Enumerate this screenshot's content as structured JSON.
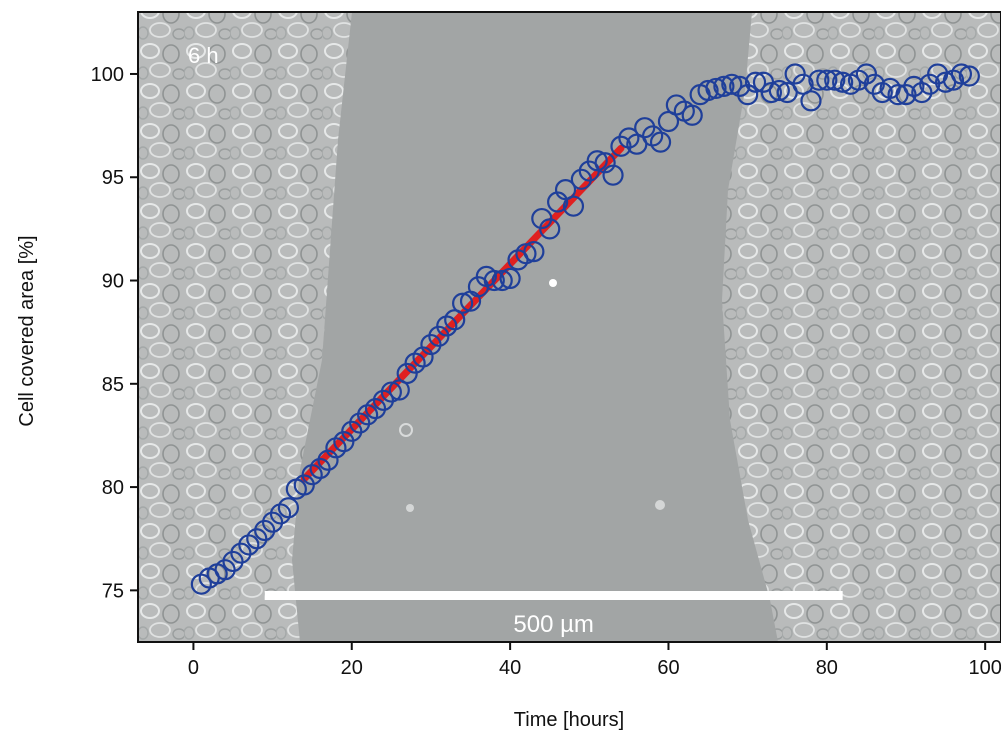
{
  "chart_data": {
    "type": "scatter",
    "title": "",
    "xlabel": "Time [hours]",
    "ylabel": "Cell covered area [%]",
    "xlim": [
      -7,
      102
    ],
    "ylim": [
      72.5,
      103
    ],
    "xticks": [
      0,
      20,
      40,
      60,
      80,
      100
    ],
    "yticks": [
      75,
      80,
      85,
      90,
      95,
      100
    ],
    "xtick_labels": [
      "0",
      "20",
      "40",
      "60",
      "80",
      "100"
    ],
    "ytick_labels": [
      "75",
      "80",
      "85",
      "90",
      "95",
      "100"
    ],
    "grid": false,
    "legend": "none",
    "background": "phase-contrast microscopy image of a cell monolayer with a scratch-wound gap",
    "image_label": "6 h",
    "scale_bar_label": "500 µm",
    "scale_bar_range": [
      9,
      82
    ],
    "series": [
      {
        "marker": "open-circle",
        "color": "#1f3f9a",
        "x": [
          1,
          2,
          3,
          4,
          5,
          6,
          7,
          8,
          9,
          10,
          11,
          12,
          13,
          14,
          15,
          16,
          17,
          18,
          19,
          20,
          21,
          22,
          23,
          24,
          25,
          26,
          27,
          28,
          29,
          30,
          31,
          32,
          33,
          34,
          35,
          36,
          37,
          38,
          39,
          40,
          41,
          42,
          43,
          44,
          45,
          46,
          47,
          48,
          49,
          50,
          51,
          52,
          53,
          54,
          55,
          56,
          57,
          58,
          59,
          60,
          61,
          62,
          63,
          64,
          65,
          66,
          67,
          68,
          69,
          70,
          71,
          72,
          73,
          74,
          75,
          76,
          77,
          78,
          79,
          80,
          81,
          82,
          83,
          84,
          85,
          86,
          87,
          88,
          89,
          90,
          91,
          92,
          93,
          94,
          95,
          96,
          97,
          98
        ],
        "y": [
          75.3,
          75.6,
          75.8,
          76.0,
          76.4,
          76.8,
          77.2,
          77.5,
          77.9,
          78.3,
          78.7,
          79.0,
          79.9,
          80.1,
          80.6,
          80.9,
          81.3,
          81.9,
          82.2,
          82.7,
          83.1,
          83.5,
          83.8,
          84.2,
          84.6,
          84.7,
          85.5,
          86.0,
          86.3,
          86.9,
          87.3,
          87.8,
          88.1,
          88.9,
          89.0,
          89.7,
          90.2,
          90.0,
          90.0,
          90.1,
          91.0,
          91.3,
          91.4,
          93.0,
          92.5,
          93.8,
          94.4,
          93.6,
          94.9,
          95.3,
          95.8,
          95.7,
          95.1,
          96.5,
          96.9,
          96.6,
          97.4,
          97.0,
          96.7,
          97.7,
          98.5,
          98.2,
          98.0,
          99.0,
          99.2,
          99.3,
          99.4,
          99.5,
          99.4,
          99.0,
          99.6,
          99.6,
          99.1,
          99.2,
          99.1,
          100.0,
          99.5,
          98.7,
          99.7,
          99.7,
          99.7,
          99.6,
          99.5,
          99.7,
          100.0,
          99.5,
          99.1,
          99.3,
          99.0,
          99.0,
          99.4,
          99.1,
          99.5,
          100.0,
          99.6,
          99.7,
          100.0,
          99.9
        ]
      },
      {
        "marker": "line-fit",
        "color": "#e02020",
        "x": [
          14,
          54
        ],
        "y": [
          80.4,
          96.4
        ]
      }
    ]
  }
}
